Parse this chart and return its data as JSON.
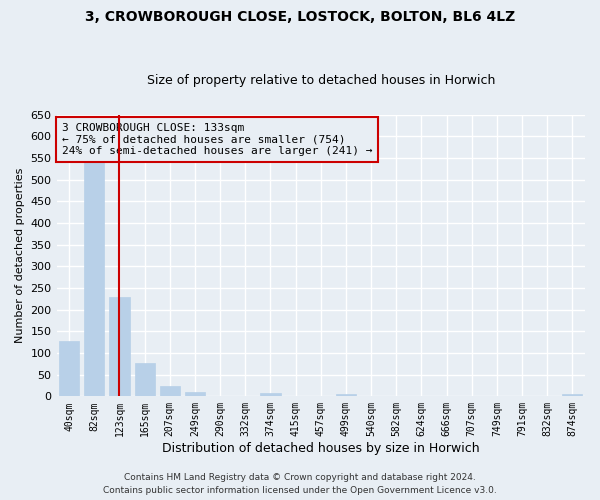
{
  "title1": "3, CROWBOROUGH CLOSE, LOSTOCK, BOLTON, BL6 4LZ",
  "title2": "Size of property relative to detached houses in Horwich",
  "xlabel": "Distribution of detached houses by size in Horwich",
  "ylabel": "Number of detached properties",
  "categories": [
    "40sqm",
    "82sqm",
    "123sqm",
    "165sqm",
    "207sqm",
    "249sqm",
    "290sqm",
    "332sqm",
    "374sqm",
    "415sqm",
    "457sqm",
    "499sqm",
    "540sqm",
    "582sqm",
    "624sqm",
    "666sqm",
    "707sqm",
    "749sqm",
    "791sqm",
    "832sqm",
    "874sqm"
  ],
  "values": [
    127,
    546,
    230,
    78,
    24,
    9,
    0,
    0,
    8,
    0,
    0,
    5,
    0,
    0,
    0,
    0,
    0,
    0,
    0,
    0,
    5
  ],
  "bar_color": "#b8d0e8",
  "vline_x": 2,
  "vline_color": "#cc0000",
  "annotation_line1": "3 CROWBOROUGH CLOSE: 133sqm",
  "annotation_line2": "← 75% of detached houses are smaller (754)",
  "annotation_line3": "24% of semi-detached houses are larger (241) →",
  "annotation_box_color": "#cc0000",
  "ylim": [
    0,
    650
  ],
  "yticks": [
    0,
    50,
    100,
    150,
    200,
    250,
    300,
    350,
    400,
    450,
    500,
    550,
    600,
    650
  ],
  "footnote1": "Contains HM Land Registry data © Crown copyright and database right 2024.",
  "footnote2": "Contains public sector information licensed under the Open Government Licence v3.0.",
  "bg_color": "#e8eef4",
  "grid_color": "#ffffff",
  "bar_edge_color": "#b8d0e8",
  "title1_fontsize": 10,
  "title2_fontsize": 9,
  "ann_fontsize": 8,
  "ylabel_fontsize": 8,
  "xlabel_fontsize": 9
}
